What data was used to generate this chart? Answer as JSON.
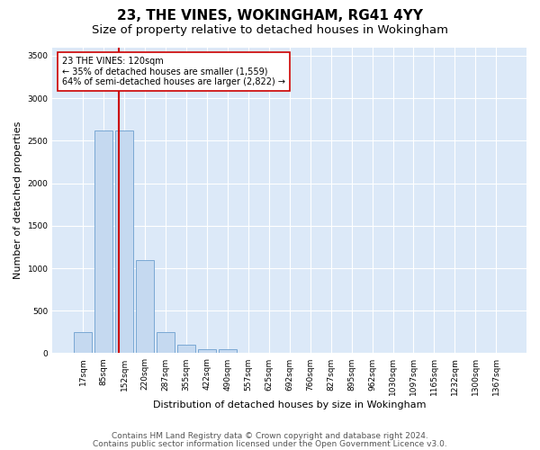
{
  "title": "23, THE VINES, WOKINGHAM, RG41 4YY",
  "subtitle": "Size of property relative to detached houses in Wokingham",
  "xlabel": "Distribution of detached houses by size in Wokingham",
  "ylabel": "Number of detached properties",
  "categories": [
    "17sqm",
    "85sqm",
    "152sqm",
    "220sqm",
    "287sqm",
    "355sqm",
    "422sqm",
    "490sqm",
    "557sqm",
    "625sqm",
    "692sqm",
    "760sqm",
    "827sqm",
    "895sqm",
    "962sqm",
    "1030sqm",
    "1097sqm",
    "1165sqm",
    "1232sqm",
    "1300sqm",
    "1367sqm"
  ],
  "values": [
    250,
    2620,
    2620,
    1100,
    250,
    100,
    50,
    50,
    0,
    0,
    0,
    0,
    0,
    0,
    0,
    0,
    0,
    0,
    0,
    0,
    0
  ],
  "bar_color": "#c5d9f0",
  "bar_edge_color": "#7aa8d4",
  "vline_x": 1.75,
  "vline_color": "#cc0000",
  "annotation_text": "23 THE VINES: 120sqm\n← 35% of detached houses are smaller (1,559)\n64% of semi-detached houses are larger (2,822) →",
  "annotation_box_color": "#ffffff",
  "annotation_box_edge": "#cc0000",
  "ylim": [
    0,
    3600
  ],
  "yticks": [
    0,
    500,
    1000,
    1500,
    2000,
    2500,
    3000,
    3500
  ],
  "plot_bg_color": "#dce9f8",
  "footer_line1": "Contains HM Land Registry data © Crown copyright and database right 2024.",
  "footer_line2": "Contains public sector information licensed under the Open Government Licence v3.0.",
  "title_fontsize": 11,
  "subtitle_fontsize": 9.5,
  "label_fontsize": 8,
  "tick_fontsize": 6.5,
  "footer_fontsize": 6.5
}
